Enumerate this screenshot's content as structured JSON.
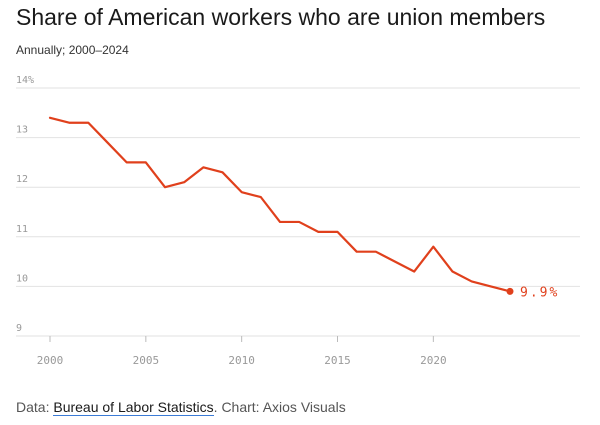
{
  "header": {
    "title": "Share of American workers who are union members",
    "subtitle": "Annually; 2000–2024"
  },
  "footer": {
    "data_prefix": "Data: ",
    "source_link": "Bureau of Labor Statistics",
    "credit": ". Chart: Axios Visuals"
  },
  "colors": {
    "line": "#e0401c",
    "grid": "#e2e2e2",
    "tick_text": "#999999",
    "link_underline": "#3b7bd6"
  },
  "chart_data": {
    "type": "line",
    "title": "Share of American workers who are union members",
    "subtitle": "Annually; 2000–2024",
    "x": [
      2000,
      2001,
      2002,
      2003,
      2004,
      2005,
      2006,
      2007,
      2008,
      2009,
      2010,
      2011,
      2012,
      2013,
      2014,
      2015,
      2016,
      2017,
      2018,
      2019,
      2020,
      2021,
      2022,
      2023,
      2024
    ],
    "series": [
      {
        "values": [
          13.4,
          13.3,
          13.3,
          12.9,
          12.5,
          12.5,
          12.0,
          12.1,
          12.4,
          12.3,
          11.9,
          11.8,
          11.3,
          11.3,
          11.1,
          11.1,
          10.7,
          10.7,
          10.5,
          10.3,
          10.8,
          10.3,
          10.1,
          10.0,
          9.9
        ]
      }
    ],
    "xlim": [
      2000,
      2024
    ],
    "ylim": [
      9,
      14
    ],
    "yticks": [
      9,
      10,
      11,
      12,
      13,
      14
    ],
    "ytick_labels": [
      "9",
      "10",
      "11",
      "12",
      "13",
      "14%"
    ],
    "xticks": [
      2000,
      2005,
      2010,
      2015,
      2020
    ],
    "xtick_labels": [
      "2000",
      "2005",
      "2010",
      "2015",
      "2020"
    ],
    "end_label": "9.9%",
    "grid": true,
    "xlabel": "",
    "ylabel": ""
  }
}
